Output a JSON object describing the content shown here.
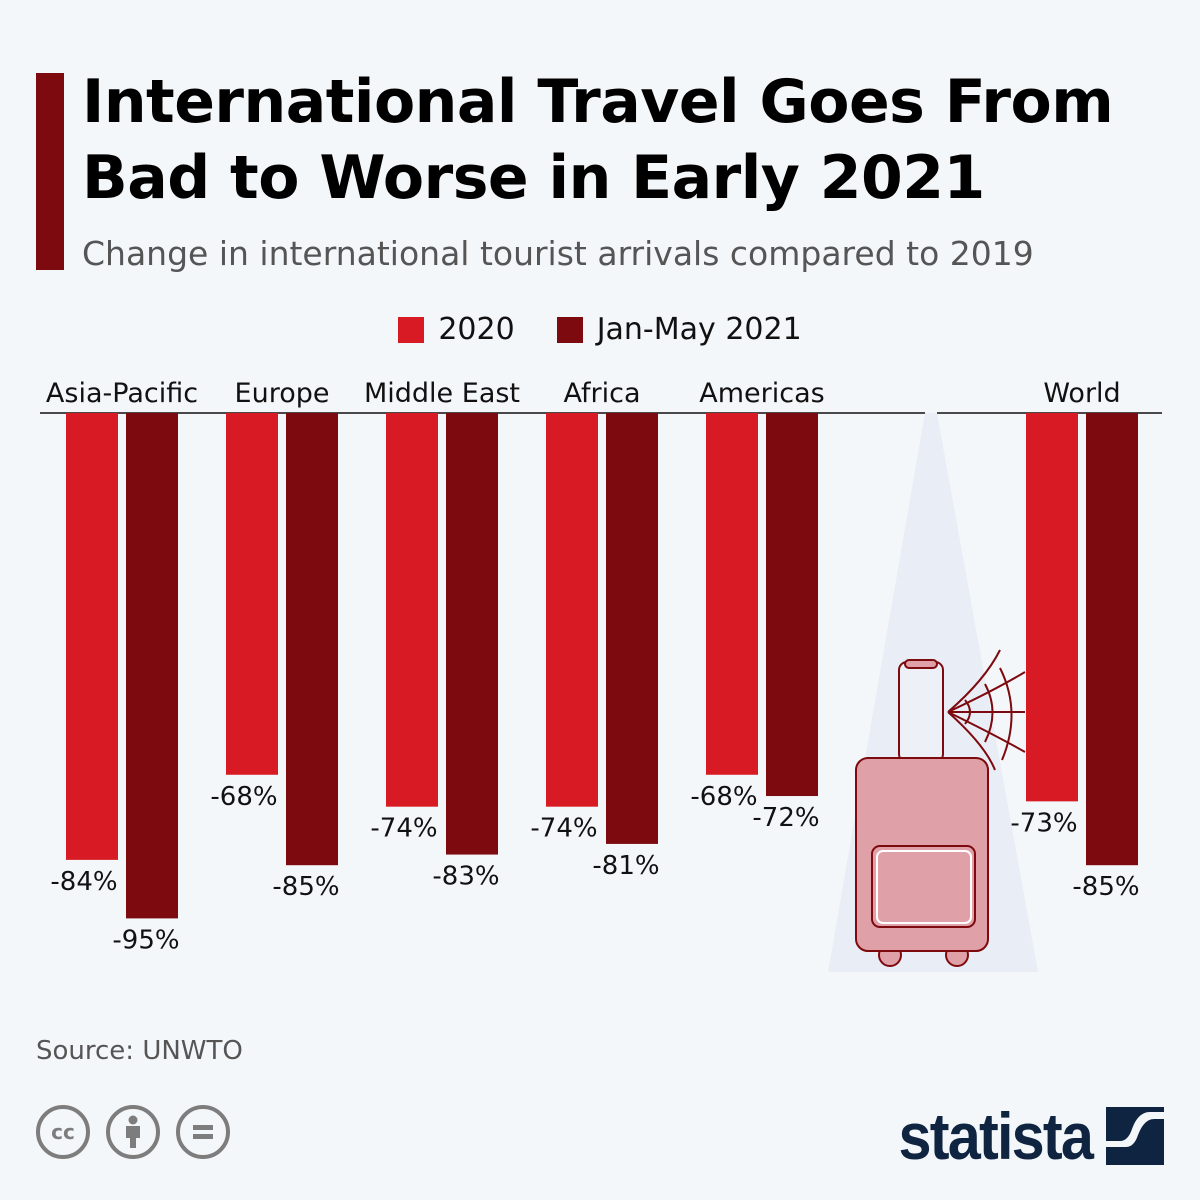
{
  "header": {
    "title": "International Travel Goes From Bad to Worse in Early 2021",
    "subtitle": "Change in international tourist arrivals compared to 2019"
  },
  "chart_data": {
    "type": "bar",
    "title": "International Travel Goes From Bad to Worse in Early 2021",
    "subtitle": "Change in international tourist arrivals compared to 2019",
    "categories": [
      "Asia-Pacific",
      "Europe",
      "Middle East",
      "Africa",
      "Americas",
      "World"
    ],
    "series": [
      {
        "name": "2020",
        "color": "#d71a24",
        "values": [
          -84,
          -68,
          -74,
          -74,
          -68,
          -73
        ],
        "labels": [
          "-84%",
          "-68%",
          "-74%",
          "-74%",
          "-68%",
          "-73%"
        ]
      },
      {
        "name": "Jan-May 2021",
        "color": "#7d0a0e",
        "values": [
          -95,
          -85,
          -83,
          -81,
          -72,
          -85
        ],
        "labels": [
          "-95%",
          "-85%",
          "-83%",
          "-81%",
          "-72%",
          "-85%"
        ]
      }
    ],
    "ylim": [
      -100,
      0
    ],
    "unit": "%",
    "grid": false,
    "legend_position": "top-center"
  },
  "footer": {
    "source": "Source: UNWTO",
    "brand": "statista",
    "license_icons": [
      "cc-icon",
      "attribution-icon",
      "no-derivatives-icon"
    ]
  },
  "illustration": "suitcase-with-cobweb-icon"
}
